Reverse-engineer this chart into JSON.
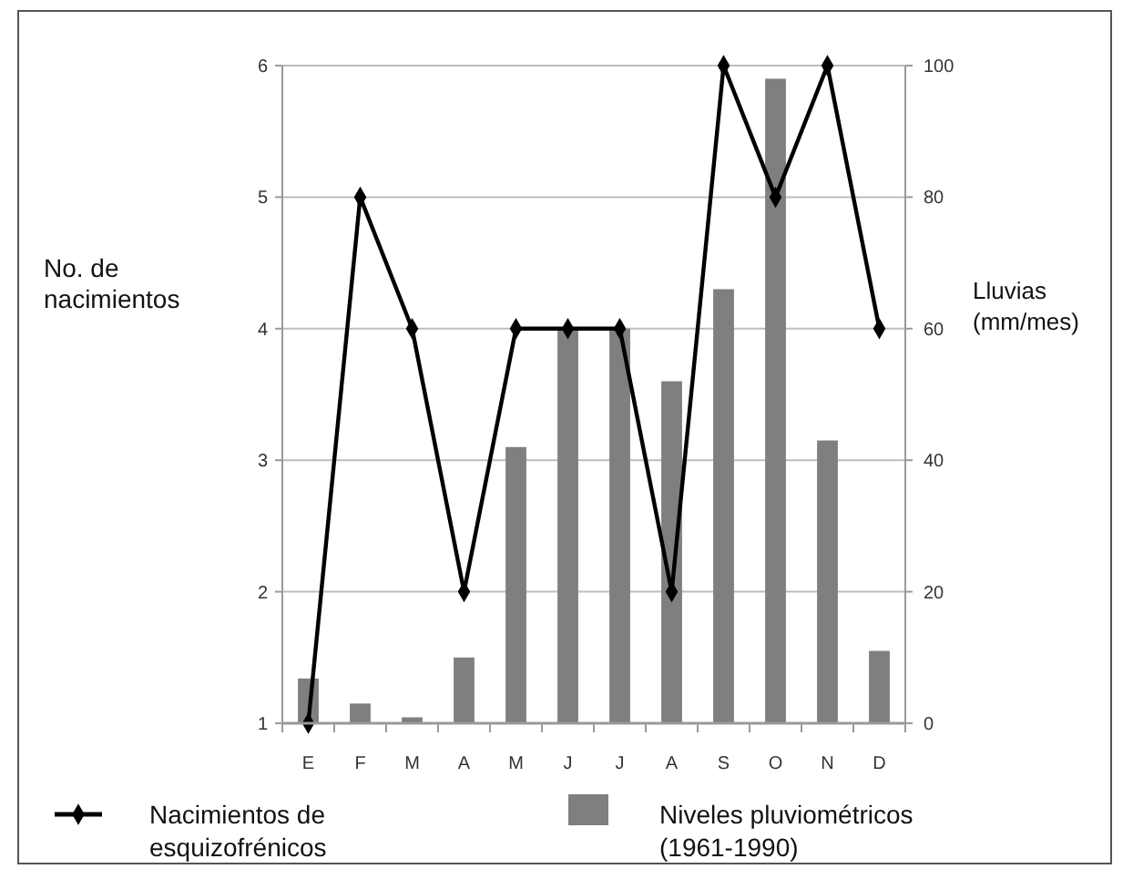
{
  "chart_data": {
    "type": "bar",
    "ylabel": "No. de nacimientos",
    "y2label": "Lluvias (mm/mes)",
    "categories": [
      "E",
      "F",
      "M",
      "A",
      "M",
      "J",
      "J",
      "A",
      "S",
      "O",
      "N",
      "D"
    ],
    "series": [
      {
        "name": "Nacimientos de esquizofrénicos",
        "type": "line",
        "color": "#000000",
        "values": [
          1,
          5,
          4,
          2,
          4,
          4,
          4,
          2,
          6,
          5,
          6,
          4
        ]
      },
      {
        "name": "Niveles pluviométricos (1961-1990)",
        "axis": "y2",
        "color": "#7f7f7f",
        "values": [
          6.8,
          3,
          0.9,
          10,
          42,
          60,
          60,
          52,
          66,
          98,
          43,
          11
        ]
      }
    ],
    "ylim": [
      1,
      6
    ],
    "yticks": [
      1,
      2,
      3,
      4,
      5,
      6
    ],
    "y2lim": [
      0,
      100
    ],
    "y2ticks": [
      0,
      20,
      40,
      60,
      80,
      100
    ],
    "grid": "y",
    "legend": "bottom",
    "marker": "diamond",
    "line_style": "solid"
  }
}
